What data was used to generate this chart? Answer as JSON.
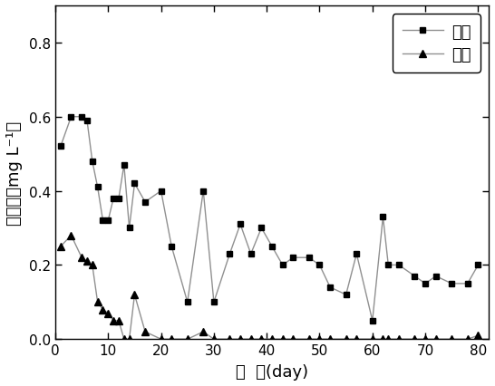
{
  "jinshui_x": [
    1,
    3,
    5,
    6,
    7,
    8,
    9,
    10,
    11,
    12,
    13,
    14,
    15,
    17,
    20,
    22,
    25,
    28,
    30,
    33,
    35,
    37,
    39,
    41,
    43,
    45,
    48,
    50,
    52,
    55,
    57,
    60,
    62,
    63,
    65,
    68,
    70,
    72,
    75,
    78,
    80
  ],
  "jinshui_y": [
    0.52,
    0.6,
    0.6,
    0.59,
    0.48,
    0.41,
    0.32,
    0.32,
    0.38,
    0.38,
    0.47,
    0.3,
    0.42,
    0.37,
    0.4,
    0.25,
    0.1,
    0.4,
    0.1,
    0.23,
    0.31,
    0.23,
    0.3,
    0.25,
    0.2,
    0.22,
    0.22,
    0.2,
    0.14,
    0.12,
    0.23,
    0.05,
    0.33,
    0.2,
    0.2,
    0.17,
    0.15,
    0.17,
    0.15,
    0.15,
    0.2
  ],
  "chushui_x": [
    1,
    3,
    5,
    6,
    7,
    8,
    9,
    10,
    11,
    12,
    13,
    14,
    15,
    17,
    20,
    22,
    25,
    28,
    30,
    33,
    35,
    37,
    39,
    41,
    43,
    45,
    48,
    50,
    52,
    55,
    57,
    60,
    62,
    63,
    65,
    68,
    70,
    72,
    75,
    78,
    80
  ],
  "chushui_y": [
    0.25,
    0.28,
    0.22,
    0.21,
    0.2,
    0.1,
    0.08,
    0.07,
    0.05,
    0.05,
    0.0,
    0.0,
    0.12,
    0.02,
    0.0,
    0.0,
    0.0,
    0.02,
    0.0,
    0.0,
    0.0,
    0.0,
    0.0,
    0.0,
    0.0,
    0.0,
    0.0,
    0.0,
    0.0,
    0.0,
    0.0,
    0.0,
    0.0,
    0.0,
    0.0,
    0.0,
    0.0,
    0.0,
    0.0,
    0.0,
    0.01
  ],
  "line_color": "#909090",
  "marker_color": "#000000",
  "xlabel": "时  间(day)",
  "ylabel": "溶解氧（mg L⁻¹）",
  "legend_jinshui": "进水",
  "legend_chushui": "出水",
  "xlim": [
    0,
    82
  ],
  "ylim": [
    0.0,
    0.9
  ],
  "xticks": [
    0,
    10,
    20,
    30,
    40,
    50,
    60,
    70,
    80
  ],
  "yticks": [
    0.0,
    0.2,
    0.4,
    0.6,
    0.8
  ],
  "bg_color": "#ffffff"
}
